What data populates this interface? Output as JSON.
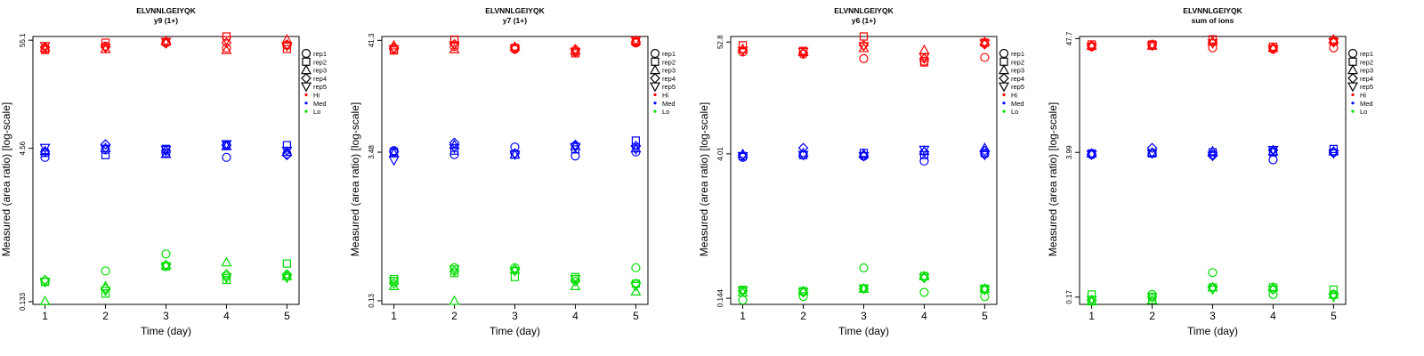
{
  "chart_data": [
    {
      "type": "scatter",
      "title": "ELVNNLGEIYQK",
      "subtitle": "y9 (1+)",
      "xlabel": "Time (day)",
      "ylabel": "Measured (area ratio) [log-scale]",
      "yscale": "log",
      "ylim": [
        0.125,
        60
      ],
      "xticks": [
        1,
        2,
        3,
        4,
        5
      ],
      "yticks": [
        0.133,
        4.56,
        55.1
      ],
      "ytick_labels": [
        "0.133",
        "4.56",
        "55.1"
      ],
      "x": [
        1,
        2,
        3,
        4,
        5
      ],
      "series": [
        {
          "name": "Hi-rep1",
          "level": "Hi",
          "rep": "rep1",
          "values": [
            45,
            48,
            52,
            46,
            49
          ]
        },
        {
          "name": "Hi-rep2",
          "level": "Hi",
          "rep": "rep2",
          "values": [
            44,
            52,
            53,
            60,
            45
          ]
        },
        {
          "name": "Hi-rep3",
          "level": "Hi",
          "rep": "rep3",
          "values": [
            46,
            45,
            54,
            44,
            56
          ]
        },
        {
          "name": "Hi-rep4",
          "level": "Hi",
          "rep": "rep4",
          "values": [
            47,
            47,
            51,
            52,
            50
          ]
        },
        {
          "name": "Hi-rep5",
          "level": "Hi",
          "rep": "rep5",
          "values": [
            48,
            46,
            53,
            55,
            48
          ]
        },
        {
          "name": "Med-rep1",
          "level": "Med",
          "rep": "rep1",
          "values": [
            3.7,
            4.4,
            4.1,
            3.7,
            4.0
          ]
        },
        {
          "name": "Med-rep2",
          "level": "Med",
          "rep": "rep2",
          "values": [
            4.1,
            3.9,
            4.5,
            4.9,
            4.9
          ]
        },
        {
          "name": "Med-rep3",
          "level": "Med",
          "rep": "rep3",
          "values": [
            4.3,
            4.6,
            4.0,
            4.8,
            4.2
          ]
        },
        {
          "name": "Med-rep4",
          "level": "Med",
          "rep": "rep4",
          "values": [
            4.2,
            5.0,
            4.3,
            4.9,
            3.9
          ]
        },
        {
          "name": "Med-rep5",
          "level": "Med",
          "rep": "rep5",
          "values": [
            4.6,
            4.5,
            4.4,
            5.0,
            4.3
          ]
        },
        {
          "name": "Lo-rep1",
          "level": "Lo",
          "rep": "rep1",
          "values": [
            0.21,
            0.27,
            0.4,
            0.24,
            0.24
          ]
        },
        {
          "name": "Lo-rep2",
          "level": "Lo",
          "rep": "rep2",
          "values": [
            0.21,
            0.16,
            0.3,
            0.22,
            0.32
          ]
        },
        {
          "name": "Lo-rep3",
          "level": "Lo",
          "rep": "rep3",
          "values": [
            0.135,
            0.19,
            0.31,
            0.33,
            0.24
          ]
        },
        {
          "name": "Lo-rep4",
          "level": "Lo",
          "rep": "rep4",
          "values": [
            0.22,
            0.18,
            0.31,
            0.25,
            0.25
          ]
        },
        {
          "name": "Lo-rep5",
          "level": "Lo",
          "rep": "rep5",
          "values": [
            0.21,
            0.17,
            0.3,
            0.23,
            0.23
          ]
        }
      ]
    },
    {
      "type": "scatter",
      "title": "ELVNNLGEIYQK",
      "subtitle": "y7 (1+)",
      "xlabel": "Time (day)",
      "ylabel": "Measured (area ratio) [log-scale]",
      "yscale": "log",
      "ylim": [
        0.12,
        45
      ],
      "xticks": [
        1,
        2,
        3,
        4,
        5
      ],
      "yticks": [
        0.13,
        3.48,
        41.3
      ],
      "ytick_labels": [
        "0.13",
        "3.48",
        "41.3"
      ],
      "x": [
        1,
        2,
        3,
        4,
        5
      ],
      "series": [
        {
          "name": "Hi-rep1",
          "level": "Hi",
          "rep": "rep1",
          "values": [
            34,
            36,
            34,
            32,
            39
          ]
        },
        {
          "name": "Hi-rep2",
          "level": "Hi",
          "rep": "rep2",
          "values": [
            33,
            42,
            35,
            31,
            40
          ]
        },
        {
          "name": "Hi-rep3",
          "level": "Hi",
          "rep": "rep3",
          "values": [
            37,
            34,
            36,
            33,
            41
          ]
        },
        {
          "name": "Hi-rep4",
          "level": "Hi",
          "rep": "rep4",
          "values": [
            35,
            38,
            35,
            34,
            40
          ]
        },
        {
          "name": "Hi-rep5",
          "level": "Hi",
          "rep": "rep5",
          "values": [
            34,
            37,
            34,
            32,
            41
          ]
        },
        {
          "name": "Med-rep1",
          "level": "Med",
          "rep": "rep1",
          "values": [
            3.6,
            3.3,
            3.9,
            3.2,
            3.5
          ]
        },
        {
          "name": "Med-rep2",
          "level": "Med",
          "rep": "rep2",
          "values": [
            3.5,
            3.6,
            3.3,
            3.7,
            4.5
          ]
        },
        {
          "name": "Med-rep3",
          "level": "Med",
          "rep": "rep3",
          "values": [
            3.4,
            4.1,
            3.3,
            4.0,
            3.8
          ]
        },
        {
          "name": "Med-rep4",
          "level": "Med",
          "rep": "rep4",
          "values": [
            3.5,
            4.3,
            3.4,
            4.1,
            4.0
          ]
        },
        {
          "name": "Med-rep5",
          "level": "Med",
          "rep": "rep5",
          "values": [
            2.9,
            3.8,
            3.3,
            3.9,
            3.7
          ]
        },
        {
          "name": "Lo-rep1",
          "level": "Lo",
          "rep": "rep1",
          "values": [
            0.2,
            0.27,
            0.27,
            0.21,
            0.27
          ]
        },
        {
          "name": "Lo-rep2",
          "level": "Lo",
          "rep": "rep2",
          "values": [
            0.21,
            0.24,
            0.22,
            0.22,
            0.19
          ]
        },
        {
          "name": "Lo-rep3",
          "level": "Lo",
          "rep": "rep3",
          "values": [
            0.18,
            0.13,
            0.26,
            0.18,
            0.16
          ]
        },
        {
          "name": "Lo-rep4",
          "level": "Lo",
          "rep": "rep4",
          "values": [
            0.19,
            0.25,
            0.26,
            0.2,
            0.19
          ]
        },
        {
          "name": "Lo-rep5",
          "level": "Lo",
          "rep": "rep5",
          "values": [
            0.2,
            0.26,
            0.25,
            0.21,
            0.18
          ]
        }
      ]
    },
    {
      "type": "scatter",
      "title": "ELVNNLGEIYQK",
      "subtitle": "y6 (1+)",
      "xlabel": "Time (day)",
      "ylabel": "Measured (area ratio) [log-scale]",
      "yscale": "log",
      "ylim": [
        0.125,
        60
      ],
      "xticks": [
        1,
        2,
        3,
        4,
        5
      ],
      "yticks": [
        0.144,
        4.01,
        52.8
      ],
      "ytick_labels": [
        "0.144",
        "4.01",
        "52.8"
      ],
      "x": [
        1,
        2,
        3,
        4,
        5
      ],
      "series": [
        {
          "name": "Hi-rep1",
          "level": "Hi",
          "rep": "rep1",
          "values": [
            42,
            40,
            36,
            34,
            37
          ]
        },
        {
          "name": "Hi-rep2",
          "level": "Hi",
          "rep": "rep2",
          "values": [
            49,
            43,
            60,
            33,
            52
          ]
        },
        {
          "name": "Hi-rep3",
          "level": "Hi",
          "rep": "rep3",
          "values": [
            45,
            42,
            46,
            44,
            53
          ]
        },
        {
          "name": "Hi-rep4",
          "level": "Hi",
          "rep": "rep4",
          "values": [
            44,
            41,
            49,
            36,
            50
          ]
        },
        {
          "name": "Hi-rep5",
          "level": "Hi",
          "rep": "rep5",
          "values": [
            43,
            42,
            48,
            37,
            51
          ]
        },
        {
          "name": "Med-rep1",
          "level": "Med",
          "rep": "rep1",
          "values": [
            3.7,
            3.9,
            3.8,
            3.4,
            4.0
          ]
        },
        {
          "name": "Med-rep2",
          "level": "Med",
          "rep": "rep2",
          "values": [
            3.8,
            3.9,
            4.1,
            3.9,
            4.1
          ]
        },
        {
          "name": "Med-rep3",
          "level": "Med",
          "rep": "rep3",
          "values": [
            4.0,
            4.1,
            4.0,
            4.3,
            4.6
          ]
        },
        {
          "name": "Med-rep4",
          "level": "Med",
          "rep": "rep4",
          "values": [
            3.9,
            4.6,
            3.8,
            4.2,
            4.3
          ]
        },
        {
          "name": "Med-rep5",
          "level": "Med",
          "rep": "rep5",
          "values": [
            3.8,
            3.9,
            3.8,
            4.4,
            3.9
          ]
        },
        {
          "name": "Lo-rep1",
          "level": "Lo",
          "rep": "rep1",
          "values": [
            0.138,
            0.15,
            0.29,
            0.165,
            0.15
          ]
        },
        {
          "name": "Lo-rep2",
          "level": "Lo",
          "rep": "rep2",
          "values": [
            0.175,
            0.17,
            0.18,
            0.24,
            0.18
          ]
        },
        {
          "name": "Lo-rep3",
          "level": "Lo",
          "rep": "rep3",
          "values": [
            0.165,
            0.17,
            0.18,
            0.24,
            0.18
          ]
        },
        {
          "name": "Lo-rep4",
          "level": "Lo",
          "rep": "rep4",
          "values": [
            0.17,
            0.165,
            0.18,
            0.23,
            0.175
          ]
        },
        {
          "name": "Lo-rep5",
          "level": "Lo",
          "rep": "rep5",
          "values": [
            0.17,
            0.165,
            0.18,
            0.23,
            0.175
          ]
        }
      ]
    },
    {
      "type": "scatter",
      "title": "ELVNNLGEIYQK",
      "subtitle": "sum of ions",
      "xlabel": "Time (day)",
      "ylabel": "Measured (area ratio) [log-scale]",
      "yscale": "log",
      "ylim": [
        0.145,
        50
      ],
      "xticks": [
        1,
        2,
        3,
        4,
        5
      ],
      "yticks": [
        0.17,
        3.99,
        47.7
      ],
      "ytick_labels": [
        "0.17",
        "3.99",
        "47.7"
      ],
      "x": [
        1,
        2,
        3,
        4,
        5
      ],
      "series": [
        {
          "name": "Hi-rep1",
          "level": "Hi",
          "rep": "rep1",
          "values": [
            40,
            41,
            39,
            38,
            39
          ]
        },
        {
          "name": "Hi-rep2",
          "level": "Hi",
          "rep": "rep2",
          "values": [
            42,
            42,
            47,
            40,
            45
          ]
        },
        {
          "name": "Hi-rep3",
          "level": "Hi",
          "rep": "rep3",
          "values": [
            41,
            41,
            45,
            39,
            47
          ]
        },
        {
          "name": "Hi-rep4",
          "level": "Hi",
          "rep": "rep4",
          "values": [
            41,
            42,
            44,
            39,
            44
          ]
        },
        {
          "name": "Hi-rep5",
          "level": "Hi",
          "rep": "rep5",
          "values": [
            40,
            41,
            43,
            38,
            44
          ]
        },
        {
          "name": "Med-rep1",
          "level": "Med",
          "rep": "rep1",
          "values": [
            3.8,
            3.9,
            3.8,
            3.4,
            4.0
          ]
        },
        {
          "name": "Med-rep2",
          "level": "Med",
          "rep": "rep2",
          "values": [
            3.9,
            3.9,
            4.0,
            4.0,
            4.3
          ]
        },
        {
          "name": "Med-rep3",
          "level": "Med",
          "rep": "rep3",
          "values": [
            3.9,
            4.0,
            4.1,
            4.1,
            4.1
          ]
        },
        {
          "name": "Med-rep4",
          "level": "Med",
          "rep": "rep4",
          "values": [
            3.8,
            4.4,
            3.7,
            4.2,
            4.0
          ]
        },
        {
          "name": "Med-rep5",
          "level": "Med",
          "rep": "rep5",
          "values": [
            3.8,
            3.9,
            3.7,
            4.2,
            3.9
          ]
        },
        {
          "name": "Lo-rep1",
          "level": "Lo",
          "rep": "rep1",
          "values": [
            0.155,
            0.18,
            0.29,
            0.18,
            0.18
          ]
        },
        {
          "name": "Lo-rep2",
          "level": "Lo",
          "rep": "rep2",
          "values": [
            0.18,
            0.17,
            0.21,
            0.21,
            0.2
          ]
        },
        {
          "name": "Lo-rep3",
          "level": "Lo",
          "rep": "rep3",
          "values": [
            0.155,
            0.16,
            0.21,
            0.21,
            0.18
          ]
        },
        {
          "name": "Lo-rep4",
          "level": "Lo",
          "rep": "rep4",
          "values": [
            0.16,
            0.17,
            0.21,
            0.2,
            0.18
          ]
        },
        {
          "name": "Lo-rep5",
          "level": "Lo",
          "rep": "rep5",
          "values": [
            0.16,
            0.17,
            0.2,
            0.2,
            0.17
          ]
        }
      ]
    }
  ],
  "legend": [
    {
      "label": "rep1",
      "symbol": "circle",
      "kind": "shape"
    },
    {
      "label": "rep2",
      "symbol": "square",
      "kind": "shape"
    },
    {
      "label": "rep3",
      "symbol": "triangle-up",
      "kind": "shape"
    },
    {
      "label": "rep4",
      "symbol": "diamond",
      "kind": "shape"
    },
    {
      "label": "rep5",
      "symbol": "triangle-down",
      "kind": "shape"
    },
    {
      "label": "Hi",
      "symbol": "dot",
      "kind": "color",
      "color": "#ff0000"
    },
    {
      "label": "Med",
      "symbol": "dot",
      "kind": "color",
      "color": "#0000ff"
    },
    {
      "label": "Lo",
      "symbol": "dot",
      "kind": "color",
      "color": "#00dd00"
    }
  ],
  "colors": {
    "Hi": "#ff0000",
    "Med": "#0000ff",
    "Lo": "#00dd00",
    "axis": "#000000"
  }
}
